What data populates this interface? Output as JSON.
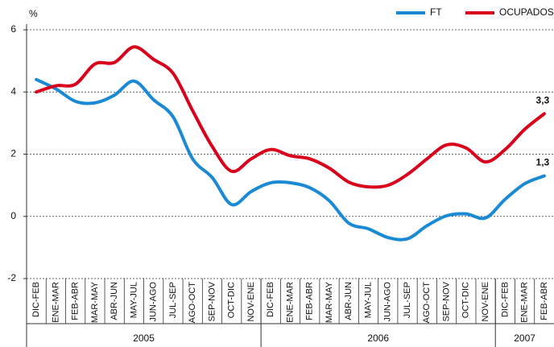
{
  "chart_data": {
    "type": "line",
    "y_label": "%",
    "categories": [
      "DIC-FEB",
      "ENE-MAR",
      "FEB-ABR",
      "MAR-MAY",
      "ABR-JUN",
      "MAY-JUL",
      "JUN-AGO",
      "JUL-SEP",
      "AGO-OCT",
      "SEP-NOV",
      "OCT-DIC",
      "NOV-ENE",
      "DIC-FEB",
      "ENE-MAR",
      "FEB-ABR",
      "MAR-MAY",
      "ABR-JUN",
      "MAY-JUL",
      "JUN-AGO",
      "JUL-SEP",
      "AGO-OCT",
      "SEP-NOV",
      "OCT-DIC",
      "NOV-ENE",
      "DIC-FEB",
      "ENE-MAR",
      "FEB-ABR"
    ],
    "year_groups": [
      {
        "label": "2005",
        "count": 12
      },
      {
        "label": "2006",
        "count": 12
      },
      {
        "label": "2007",
        "count": 3
      }
    ],
    "series": [
      {
        "name": "FT",
        "color": "#1a8ad4",
        "values": [
          4.4,
          4.1,
          3.7,
          3.65,
          3.9,
          4.35,
          3.75,
          3.2,
          1.85,
          1.25,
          0.38,
          0.8,
          1.08,
          1.08,
          0.92,
          0.5,
          -0.22,
          -0.4,
          -0.68,
          -0.72,
          -0.3,
          0.02,
          0.08,
          -0.05,
          0.55,
          1.05,
          1.3
        ],
        "value_labels": [
          null,
          null,
          null,
          null,
          null,
          null,
          null,
          null,
          null,
          null,
          null,
          null,
          null,
          null,
          null,
          null,
          null,
          null,
          null,
          null,
          null,
          null,
          null,
          null,
          null,
          null,
          "1,3"
        ]
      },
      {
        "name": "OCUPADOS",
        "color": "#d9001b",
        "values": [
          4.0,
          4.2,
          4.25,
          4.9,
          4.95,
          5.45,
          5.05,
          4.6,
          3.4,
          2.25,
          1.45,
          1.85,
          2.15,
          1.95,
          1.85,
          1.55,
          1.1,
          0.95,
          1.0,
          1.35,
          1.85,
          2.3,
          2.2,
          1.75,
          2.15,
          2.8,
          3.3
        ],
        "value_labels": [
          null,
          null,
          null,
          null,
          null,
          null,
          null,
          null,
          null,
          null,
          null,
          null,
          null,
          null,
          null,
          null,
          null,
          null,
          null,
          null,
          null,
          null,
          null,
          null,
          null,
          null,
          "3,3"
        ]
      }
    ],
    "ylim": [
      -2,
      6
    ],
    "yticks": [
      -2,
      0,
      2,
      4,
      6
    ],
    "grid": true,
    "legend": "top-right"
  }
}
